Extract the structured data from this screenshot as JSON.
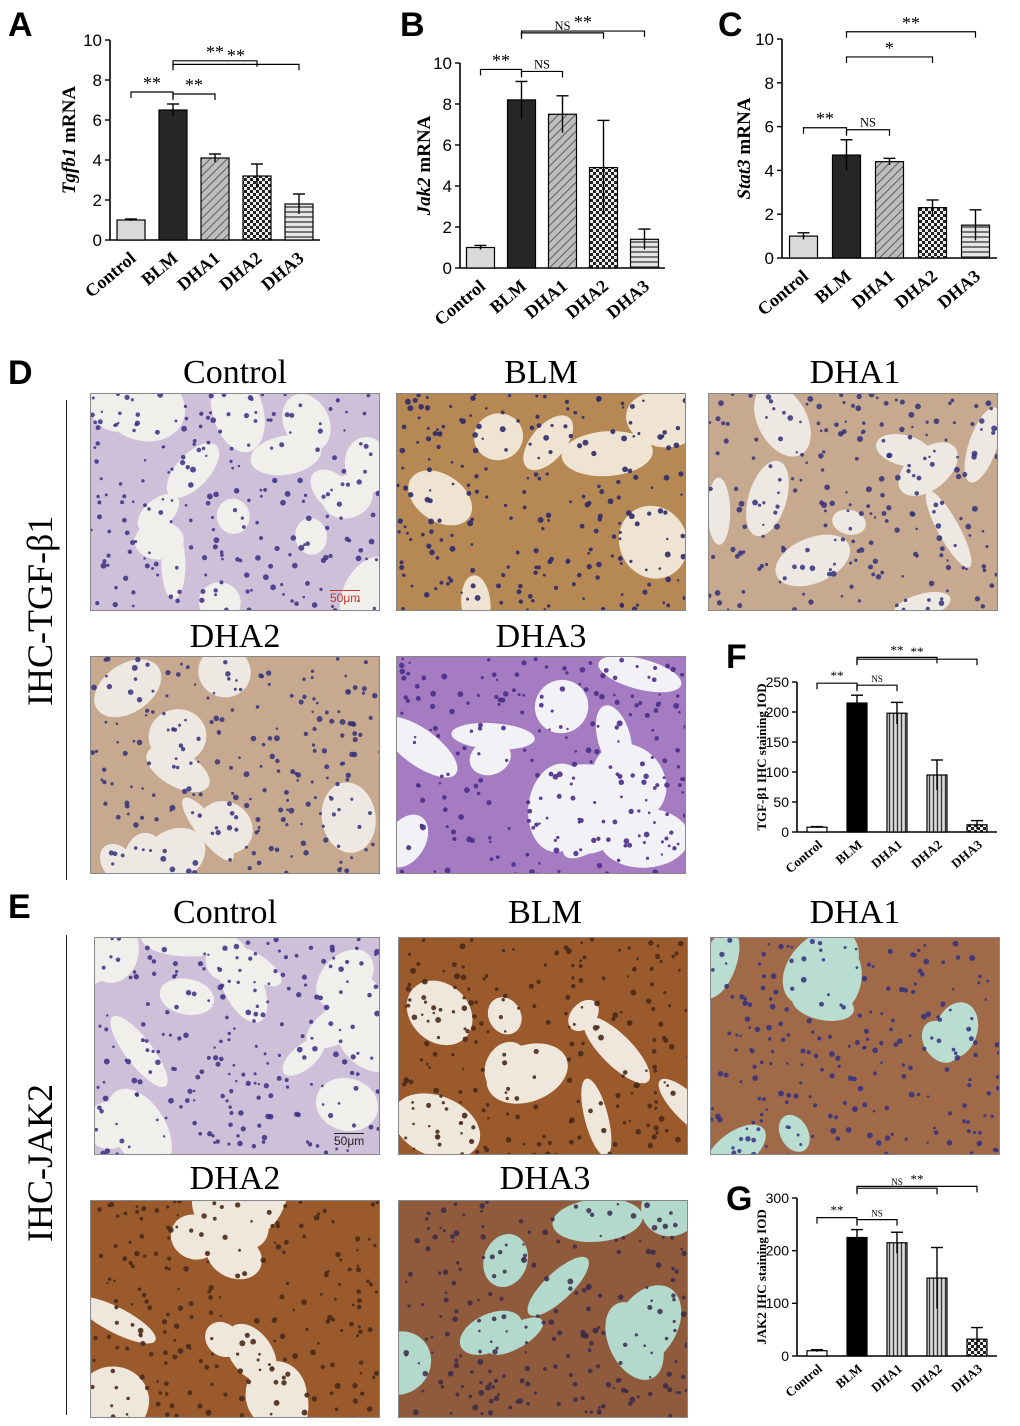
{
  "panels": {
    "A": "A",
    "B": "B",
    "C": "C",
    "D": "D",
    "E": "E",
    "F": "F",
    "G": "G"
  },
  "row_labels": {
    "D": "IHC-TGF-β1",
    "E": "IHC-JAK2"
  },
  "image_titles": {
    "control": "Control",
    "blm": "BLM",
    "dha1": "DHA1",
    "dha2": "DHA2",
    "dha3": "DHA3"
  },
  "scale_bar": "50μm",
  "colors": {
    "control_bar": "#d9d9d9",
    "blm_bar": "#262626",
    "tissue_light": "#c9b9d6",
    "tissue_brown": "#a0673a",
    "nucleus": "#3a2a7a",
    "background_lumen": "#eef0ec",
    "background_lumen_teal": "#b9ddd1"
  },
  "chart_data": [
    {
      "id": "A",
      "type": "bar",
      "categories": [
        "Control",
        "BLM",
        "DHA1",
        "DHA2",
        "DHA3"
      ],
      "values": [
        1.0,
        6.5,
        4.1,
        3.2,
        1.8
      ],
      "errors": [
        0.05,
        0.3,
        0.2,
        0.6,
        0.5
      ],
      "ylabel": "Tgfb1 mRNA",
      "ylim": [
        0,
        10
      ],
      "yticks": [
        0,
        2,
        4,
        6,
        8,
        10
      ],
      "patterns": [
        "light",
        "dark",
        "hatch",
        "check",
        "hlines"
      ],
      "sig": [
        {
          "from": 0,
          "to": 1,
          "label": "**",
          "level": 0
        },
        {
          "from": 1,
          "to": 2,
          "label": "**",
          "level": 0
        },
        {
          "from": 1,
          "to": 3,
          "label": "**",
          "level": 1
        },
        {
          "from": 1,
          "to": 4,
          "label": "**",
          "level": 2
        }
      ]
    },
    {
      "id": "B",
      "type": "bar",
      "categories": [
        "Control",
        "BLM",
        "DHA1",
        "DHA2",
        "DHA3"
      ],
      "values": [
        1.0,
        8.2,
        7.5,
        4.9,
        1.4
      ],
      "errors": [
        0.1,
        0.9,
        0.9,
        2.3,
        0.5
      ],
      "ylabel": "Jak2 mRNA",
      "ylim": [
        0,
        10
      ],
      "yticks": [
        0,
        2,
        4,
        6,
        8,
        10
      ],
      "patterns": [
        "light",
        "dark",
        "hatch",
        "check",
        "hlines"
      ],
      "sig": [
        {
          "from": 0,
          "to": 1,
          "label": "**",
          "level": 0
        },
        {
          "from": 1,
          "to": 2,
          "label": "NS",
          "level": 0
        },
        {
          "from": 1,
          "to": 3,
          "label": "NS",
          "level": 1
        },
        {
          "from": 1,
          "to": 4,
          "label": "**",
          "level": 2
        }
      ]
    },
    {
      "id": "C",
      "type": "bar",
      "categories": [
        "Control",
        "BLM",
        "DHA1",
        "DHA2",
        "DHA3"
      ],
      "values": [
        1.0,
        4.7,
        4.4,
        2.3,
        1.5
      ],
      "errors": [
        0.15,
        0.7,
        0.15,
        0.35,
        0.7
      ],
      "ylabel": "Stat3 mRNA",
      "ylim": [
        0,
        10
      ],
      "yticks": [
        0,
        2,
        4,
        6,
        8,
        10
      ],
      "patterns": [
        "light",
        "dark",
        "hatch",
        "check",
        "hlines"
      ],
      "sig": [
        {
          "from": 0,
          "to": 1,
          "label": "**",
          "level": 0
        },
        {
          "from": 1,
          "to": 2,
          "label": "NS",
          "level": 0
        },
        {
          "from": 1,
          "to": 3,
          "label": "*",
          "level": 1
        },
        {
          "from": 1,
          "to": 4,
          "label": "**",
          "level": 2
        }
      ]
    },
    {
      "id": "F",
      "type": "bar",
      "categories": [
        "Control",
        "BLM",
        "DHA1",
        "DHA2",
        "DHA3"
      ],
      "values": [
        8,
        215,
        198,
        95,
        12
      ],
      "errors": [
        1,
        13,
        18,
        25,
        7
      ],
      "ylabel": "TGF-β1 IHC staining IOD",
      "ylim": [
        0,
        250
      ],
      "yticks": [
        0,
        50,
        100,
        150,
        200,
        250
      ],
      "patterns": [
        "white",
        "black",
        "vlines",
        "vlines",
        "check"
      ],
      "sig": [
        {
          "from": 0,
          "to": 1,
          "label": "**",
          "level": 0
        },
        {
          "from": 1,
          "to": 2,
          "label": "NS",
          "level": 0
        },
        {
          "from": 1,
          "to": 3,
          "label": "**",
          "level": 1
        },
        {
          "from": 1,
          "to": 4,
          "label": "**",
          "level": 2
        }
      ]
    },
    {
      "id": "G",
      "type": "bar",
      "categories": [
        "Control",
        "BLM",
        "DHA1",
        "DHA2",
        "DHA3"
      ],
      "values": [
        10,
        225,
        215,
        148,
        32
      ],
      "errors": [
        2,
        15,
        20,
        58,
        22
      ],
      "ylabel": "JAK2 IHC staining IOD",
      "ylim": [
        0,
        300
      ],
      "yticks": [
        0,
        100,
        200,
        300
      ],
      "patterns": [
        "white",
        "black",
        "vlines",
        "vlines",
        "check"
      ],
      "sig": [
        {
          "from": 0,
          "to": 1,
          "label": "**",
          "level": 0
        },
        {
          "from": 1,
          "to": 2,
          "label": "NS",
          "level": 0
        },
        {
          "from": 1,
          "to": 3,
          "label": "NS",
          "level": 1
        },
        {
          "from": 1,
          "to": 4,
          "label": "**",
          "level": 2
        }
      ]
    }
  ]
}
